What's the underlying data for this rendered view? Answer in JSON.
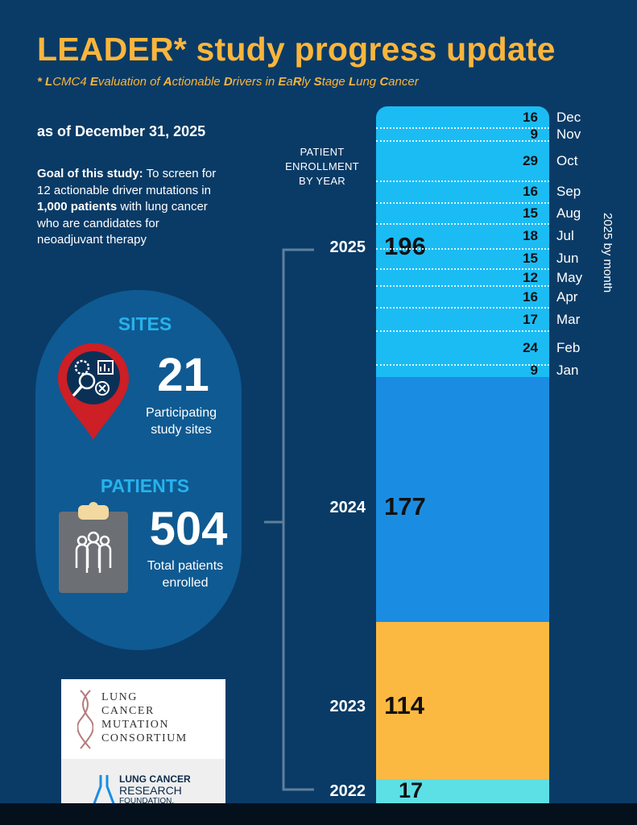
{
  "header": {
    "title": "LEADER* study progress update",
    "subtitle_parts": [
      {
        "b": "* ",
        "t": ""
      },
      {
        "b": "L",
        "t": "CMC4 "
      },
      {
        "b": "E",
        "t": "valuation of "
      },
      {
        "b": "A",
        "t": "ctionable "
      },
      {
        "b": "D",
        "t": "rivers in "
      },
      {
        "b": "E",
        "t": "a"
      },
      {
        "b": "R",
        "t": "ly "
      },
      {
        "b": "S",
        "t": "tage "
      },
      {
        "b": "L",
        "t": "ung "
      },
      {
        "b": "C",
        "t": "ancer"
      }
    ],
    "as_of": "as of December 31, 2025"
  },
  "goal": {
    "label": "Goal of this study:",
    "text1": " To screen for 12 actionable driver mutations in ",
    "bold": "1,000 patients",
    "text2": " with lung cancer who are candidates for neoadjuvant therapy"
  },
  "sites": {
    "label": "SITES",
    "value": "21",
    "caption": "Participating study sites"
  },
  "patients": {
    "label": "PATIENTS",
    "value": "504",
    "caption": "Total patients enrolled"
  },
  "colors": {
    "y2025": "#1bbcf4",
    "y2024": "#1a8de3",
    "y2023": "#fbb942",
    "y2022": "#5ce0e6",
    "accent": "#fbb53c"
  },
  "chart_data": {
    "type": "bar",
    "stacked": true,
    "enrollment_label": "PATIENT ENROLLMENT BY YEAR",
    "vertical_label": "2025 by month",
    "years": [
      {
        "year": "2022",
        "value": 17
      },
      {
        "year": "2023",
        "value": 114
      },
      {
        "year": "2024",
        "value": 177
      },
      {
        "year": "2025",
        "value": 196
      }
    ],
    "months_2025": [
      {
        "month": "Jan",
        "value": 9
      },
      {
        "month": "Feb",
        "value": 24
      },
      {
        "month": "Mar",
        "value": 17
      },
      {
        "month": "Apr",
        "value": 16
      },
      {
        "month": "May",
        "value": 12
      },
      {
        "month": "Jun",
        "value": 15
      },
      {
        "month": "Jul",
        "value": 18
      },
      {
        "month": "Aug",
        "value": 15
      },
      {
        "month": "Sep",
        "value": 16
      },
      {
        "month": "Oct",
        "value": 29
      },
      {
        "month": "Nov",
        "value": 9
      },
      {
        "month": "Dec",
        "value": 16
      }
    ]
  },
  "logos": {
    "lcmc": [
      "LUNG",
      "CANCER",
      "MUTATION",
      "CONSORTIUM"
    ],
    "lcrf": [
      "LUNG CANCER",
      "RESEARCH",
      "FOUNDATION."
    ]
  }
}
